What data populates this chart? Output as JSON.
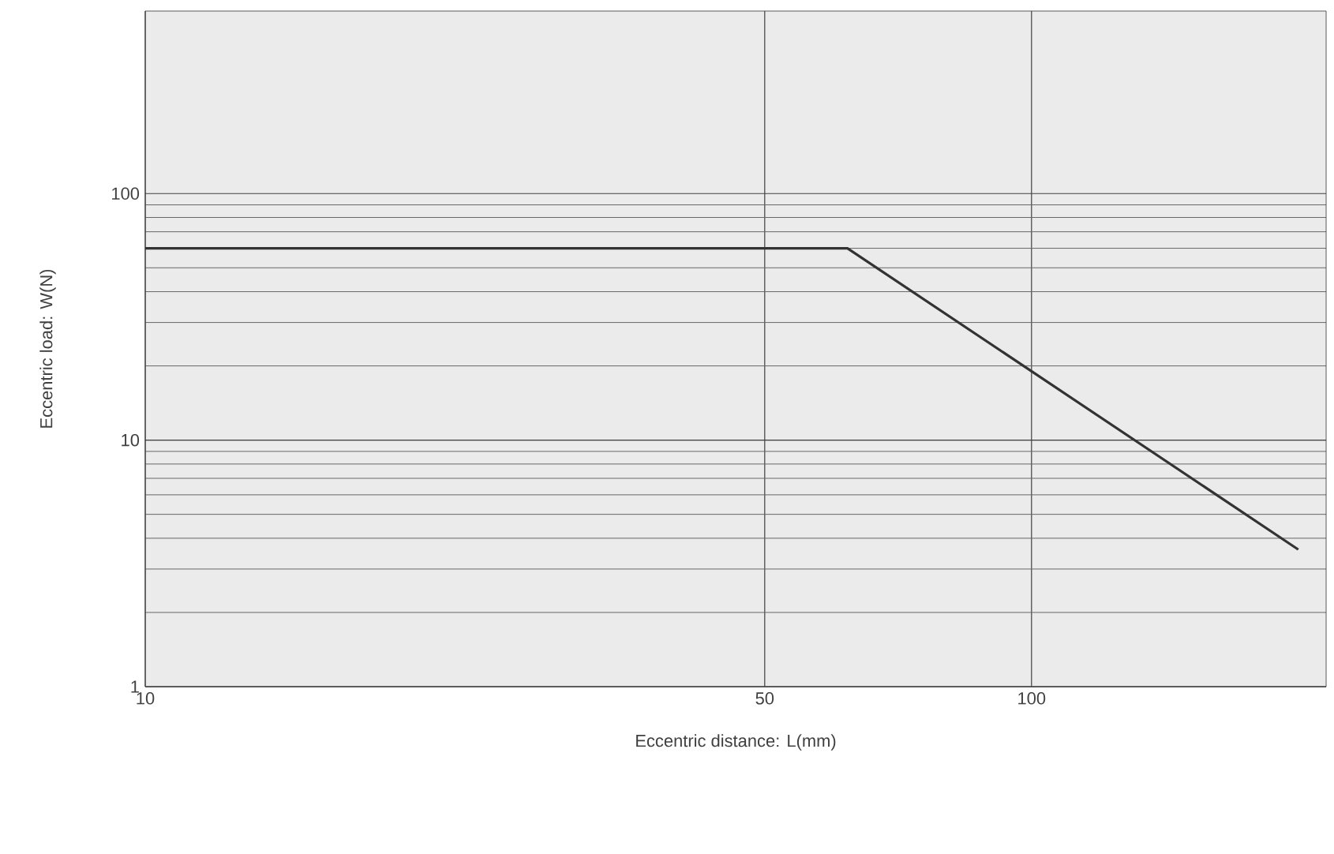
{
  "chart_data": {
    "type": "line",
    "xlabel": "Eccentric distance: L(mm)",
    "ylabel": "Eccentric load: W(N)",
    "log": "xy",
    "x": [
      10,
      62,
      200
    ],
    "series": [
      {
        "color": "#333333",
        "values": [
          60,
          60,
          3.6
        ]
      }
    ],
    "xlim": [
      10,
      215
    ],
    "ylim": [
      1,
      550
    ],
    "xticks": [
      10,
      50,
      100
    ],
    "yticks": [
      1,
      10,
      100
    ],
    "grid": true,
    "marker": "none",
    "line_style": "solid"
  }
}
